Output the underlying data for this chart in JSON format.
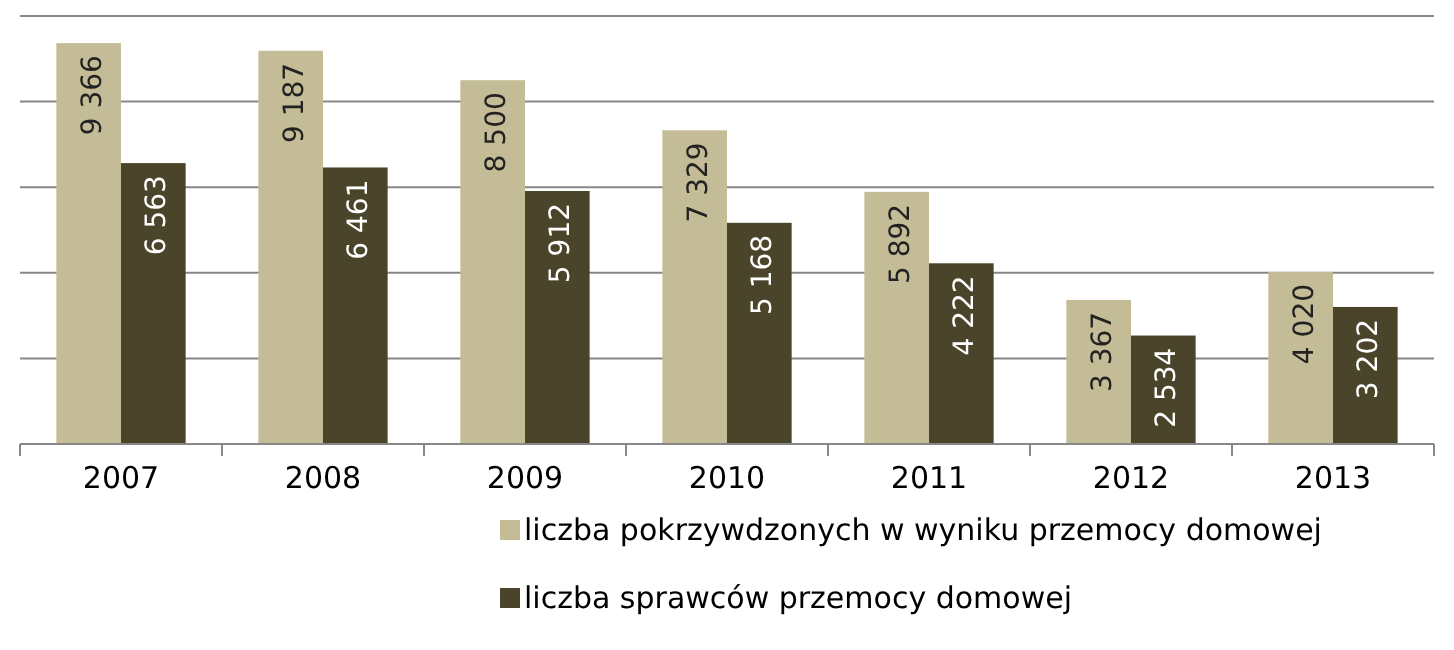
{
  "chart_data": {
    "type": "bar",
    "categories": [
      "2007",
      "2008",
      "2009",
      "2010",
      "2011",
      "2012",
      "2013"
    ],
    "series": [
      {
        "name": "liczba pokrzywdzonych w wyniku przemocy domowej",
        "color": "#c4bc96",
        "values": [
          9366,
          9187,
          8500,
          7329,
          5892,
          3367,
          4020
        ],
        "value_labels": [
          "9 366",
          "9 187",
          "8 500",
          "7 329",
          "5 892",
          "3 367",
          "4 020"
        ]
      },
      {
        "name": "liczba sprawców przemocy domowej",
        "color": "#4a452a",
        "values": [
          6563,
          6461,
          5912,
          5168,
          4222,
          2534,
          3202
        ],
        "value_labels": [
          "6 563",
          "6 461",
          "5 912",
          "5 168",
          "4 222",
          "2 534",
          "3 202"
        ]
      }
    ],
    "ylim": [
      0,
      10000
    ],
    "yticks": [
      {
        "value": 0,
        "label": null
      },
      {
        "value": 2000,
        "label": null
      },
      {
        "value": 4000,
        "label": null
      },
      {
        "value": 6000,
        "label": null
      },
      {
        "value": 8000,
        "label": null
      },
      {
        "value": 10000,
        "label": null
      }
    ],
    "grid": "y",
    "legend": "bottom",
    "tick_labels": "x"
  }
}
